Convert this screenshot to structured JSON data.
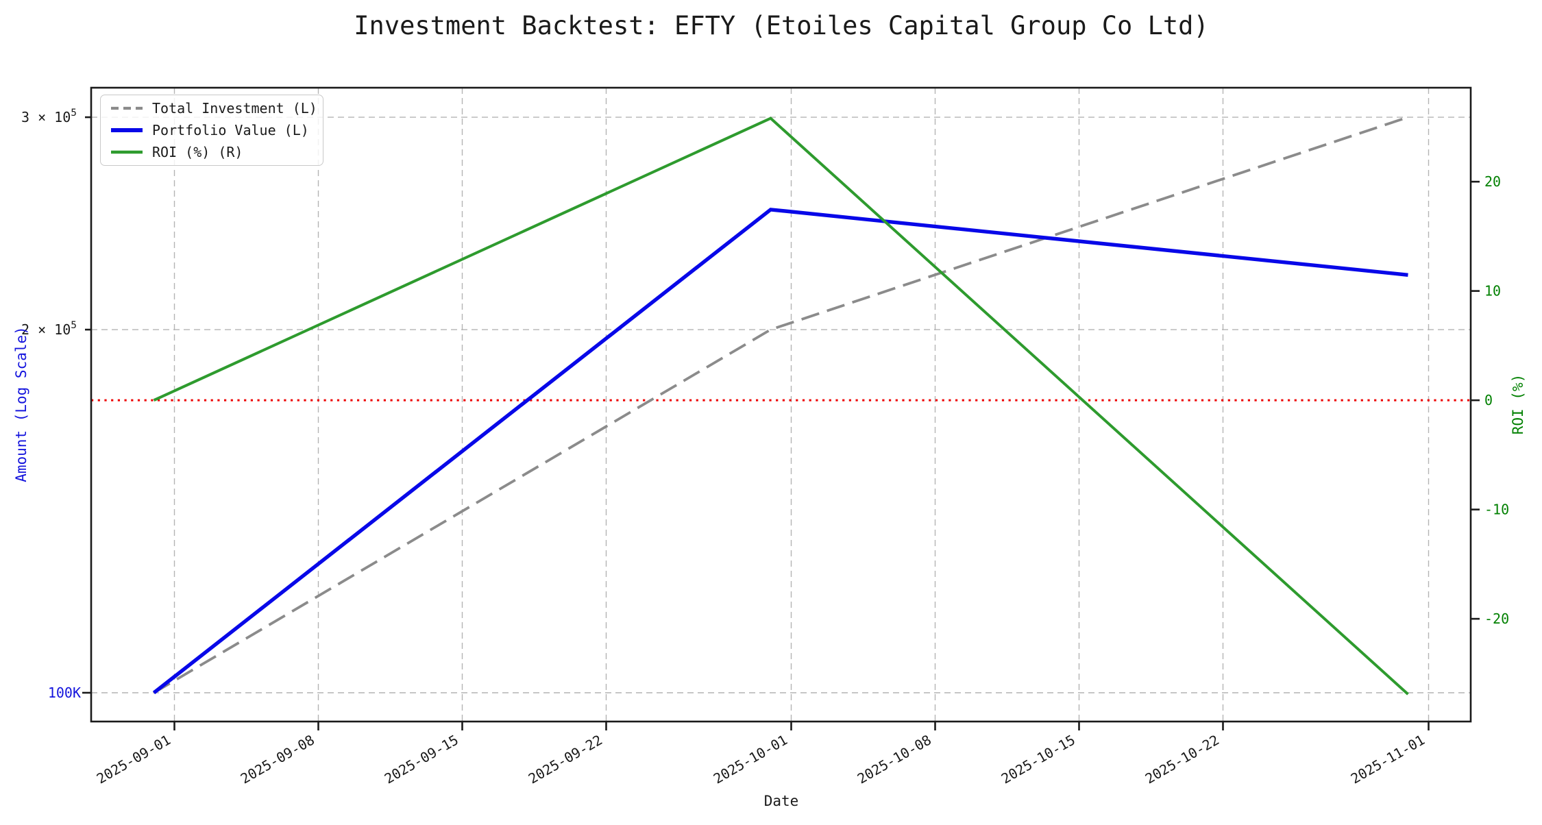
{
  "chart_data": {
    "type": "line",
    "title": "Investment Backtest: EFTY (Etoiles Capital Group Co Ltd)",
    "xlabel": "Date",
    "ylabel_left": "Amount (Log Scale)",
    "ylabel_right": "ROI (%)",
    "grid": true,
    "legend_position": "upper left",
    "x_axis": {
      "epoch": "2025-08-31",
      "lim_days": [
        -3.05,
        64.05
      ],
      "ticks": [
        {
          "date": "2025-09-01",
          "label": "2025-09-01"
        },
        {
          "date": "2025-09-08",
          "label": "2025-09-08"
        },
        {
          "date": "2025-09-15",
          "label": "2025-09-15"
        },
        {
          "date": "2025-09-22",
          "label": "2025-09-22"
        },
        {
          "date": "2025-10-01",
          "label": "2025-10-01"
        },
        {
          "date": "2025-10-08",
          "label": "2025-10-08"
        },
        {
          "date": "2025-10-15",
          "label": "2025-10-15"
        },
        {
          "date": "2025-10-22",
          "label": "2025-10-22"
        },
        {
          "date": "2025-11-01",
          "label": "2025-11-01"
        }
      ]
    },
    "left_axis": {
      "scale": "log",
      "lim": [
        94655,
        317380
      ],
      "label_color": "#1414dd",
      "ticks": [
        {
          "value": 100000,
          "label": "100K",
          "sup": "",
          "color": "#1414dd",
          "kind": "major"
        },
        {
          "value": 200000,
          "label": "2 × 10",
          "sup": "5",
          "color": "#1a1a1a",
          "kind": "minor"
        },
        {
          "value": 300000,
          "label": "3 × 10",
          "sup": "5",
          "color": "#1a1a1a",
          "kind": "minor"
        }
      ]
    },
    "right_axis": {
      "scale": "linear",
      "lim": [
        -29.4,
        28.6
      ],
      "label_color": "#008000",
      "ticks": [
        {
          "value": 20,
          "label": "20"
        },
        {
          "value": 10,
          "label": "10"
        },
        {
          "value": 0,
          "label": "0"
        },
        {
          "value": -10,
          "label": "-10"
        },
        {
          "value": -20,
          "label": "-20"
        }
      ],
      "zero_line": {
        "value": 0,
        "color": "#ee0000",
        "style": "dotted",
        "width": 3
      }
    },
    "x_dates": [
      "2025-08-31",
      "2025-09-30",
      "2025-10-31"
    ],
    "series": [
      {
        "name": "Total Investment (L)",
        "axis": "left",
        "color": "#8b8b8b",
        "style": "dashed",
        "width": 3.8,
        "values": [
          100000,
          200000,
          300000
        ]
      },
      {
        "name": "Portfolio Value (L)",
        "axis": "left",
        "color": "#0808e8",
        "style": "solid",
        "width": 5.4,
        "values": [
          100000,
          251500,
          222000
        ]
      },
      {
        "name": "ROI (%) (R)",
        "axis": "right",
        "color": "#2e9b2e",
        "style": "solid",
        "width": 4,
        "values": [
          0.0,
          25.8,
          -26.9
        ]
      }
    ],
    "roi_values_pct": {
      "start": 0.0,
      "peak": 25.8,
      "end": -26.9
    }
  },
  "style_tokens": {
    "grid_color": "#b4b4b4",
    "spine_color": "#1a1a1a",
    "tick_text_color": "#1a1a1a",
    "background": "#ffffff"
  }
}
